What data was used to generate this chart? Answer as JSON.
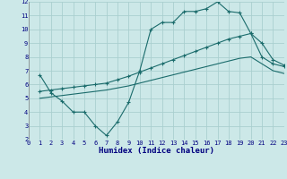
{
  "xlabel": "Humidex (Indice chaleur)",
  "bg_color": "#cce8e8",
  "grid_color": "#aacfcf",
  "line_color": "#1a6b6b",
  "xlim": [
    0,
    23
  ],
  "ylim": [
    2,
    12
  ],
  "xticks": [
    0,
    1,
    2,
    3,
    4,
    5,
    6,
    7,
    8,
    9,
    10,
    11,
    12,
    13,
    14,
    15,
    16,
    17,
    18,
    19,
    20,
    21,
    22,
    23
  ],
  "yticks": [
    2,
    3,
    4,
    5,
    6,
    7,
    8,
    9,
    10,
    11,
    12
  ],
  "line1_x": [
    1,
    2,
    3,
    4,
    5,
    6,
    7,
    8,
    9,
    10,
    11,
    12,
    13,
    14,
    15,
    16,
    17,
    18,
    19,
    20,
    21,
    22,
    23
  ],
  "line1_y": [
    6.7,
    5.4,
    4.8,
    4.0,
    4.0,
    3.0,
    2.3,
    3.3,
    4.7,
    7.0,
    10.0,
    10.5,
    10.5,
    11.3,
    11.3,
    11.5,
    12.0,
    11.3,
    11.2,
    9.7,
    8.0,
    7.5,
    7.3
  ],
  "line2_x": [
    1,
    2,
    3,
    4,
    5,
    6,
    7,
    8,
    9,
    10,
    11,
    12,
    13,
    14,
    15,
    16,
    17,
    18,
    19,
    20,
    21,
    22,
    23
  ],
  "line2_y": [
    5.5,
    5.6,
    5.7,
    5.8,
    5.9,
    6.0,
    6.1,
    6.35,
    6.6,
    6.9,
    7.2,
    7.5,
    7.8,
    8.1,
    8.4,
    8.7,
    9.0,
    9.3,
    9.5,
    9.7,
    9.0,
    7.8,
    7.4
  ],
  "line3_x": [
    1,
    2,
    3,
    4,
    5,
    6,
    7,
    8,
    9,
    10,
    11,
    12,
    13,
    14,
    15,
    16,
    17,
    18,
    19,
    20,
    21,
    22,
    23
  ],
  "line3_y": [
    5.0,
    5.1,
    5.2,
    5.3,
    5.4,
    5.5,
    5.6,
    5.75,
    5.9,
    6.1,
    6.3,
    6.5,
    6.7,
    6.9,
    7.1,
    7.3,
    7.5,
    7.7,
    7.9,
    8.0,
    7.5,
    7.0,
    6.8
  ]
}
